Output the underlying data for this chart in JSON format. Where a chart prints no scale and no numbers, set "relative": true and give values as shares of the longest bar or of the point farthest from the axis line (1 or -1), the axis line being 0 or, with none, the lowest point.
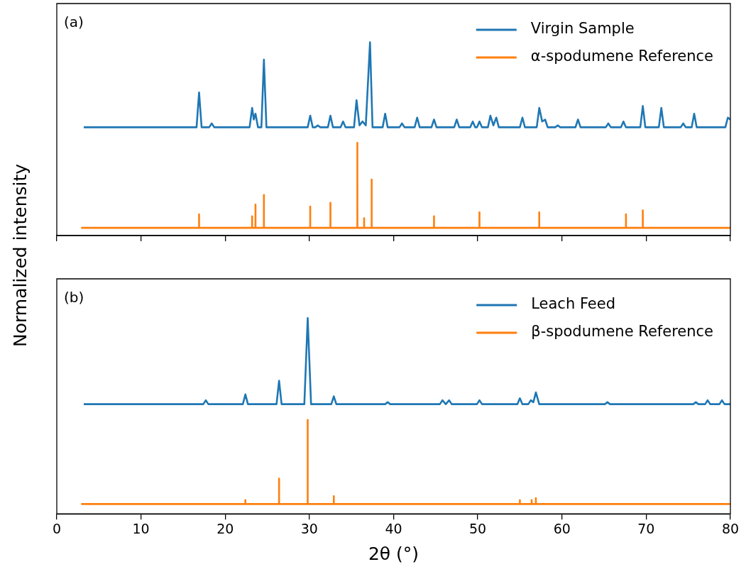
{
  "chart_data": [
    {
      "type": "line",
      "relative": true,
      "ylabel": "Normalized intensity",
      "xlim": [
        0,
        80
      ],
      "xticks": [
        0,
        10,
        20,
        30,
        40,
        50,
        60,
        70,
        80
      ],
      "tick_labels": false,
      "legend": "top right",
      "annotations": [
        "(a)"
      ],
      "series": [
        {
          "name": "Virgin Sample",
          "color": "#1f77b4",
          "x": [
            3.2,
            16.6,
            16.9,
            17.2,
            18.1,
            18.4,
            18.7,
            22.9,
            23.2,
            23.4,
            23.6,
            23.9,
            24.3,
            24.6,
            24.9,
            29.8,
            30.1,
            30.4,
            30.7,
            31.0,
            31.3,
            32.2,
            32.5,
            32.8,
            33.7,
            34.0,
            34.3,
            35.3,
            35.6,
            35.95,
            36.3,
            36.7,
            37.2,
            37.5,
            38.7,
            39.0,
            39.3,
            40.7,
            41.0,
            41.3,
            42.5,
            42.8,
            43.1,
            44.5,
            44.8,
            45.1,
            47.2,
            47.5,
            47.8,
            49.1,
            49.4,
            49.7,
            49.9,
            50.2,
            50.5,
            51.2,
            51.5,
            51.85,
            52.2,
            52.5,
            55.0,
            55.3,
            55.6,
            57.0,
            57.3,
            57.65,
            58.0,
            58.3,
            59.2,
            59.5,
            59.8,
            61.6,
            61.9,
            62.2,
            65.2,
            65.5,
            65.8,
            67.0,
            67.3,
            67.6,
            69.3,
            69.6,
            69.9,
            71.5,
            71.8,
            72.1,
            74.1,
            74.4,
            74.7,
            75.4,
            75.7,
            76.0,
            79.4,
            79.7,
            80
          ],
          "values": [
            0.56,
            0.56,
            0.74,
            0.56,
            0.56,
            0.58,
            0.56,
            0.56,
            0.66,
            0.6,
            0.63,
            0.56,
            0.56,
            0.91,
            0.56,
            0.56,
            0.62,
            0.56,
            0.56,
            0.57,
            0.56,
            0.56,
            0.62,
            0.56,
            0.56,
            0.59,
            0.56,
            0.56,
            0.7,
            0.57,
            0.59,
            0.57,
            1,
            0.56,
            0.56,
            0.63,
            0.56,
            0.56,
            0.58,
            0.56,
            0.56,
            0.61,
            0.56,
            0.56,
            0.6,
            0.56,
            0.56,
            0.6,
            0.56,
            0.56,
            0.59,
            0.56,
            0.56,
            0.59,
            0.56,
            0.56,
            0.62,
            0.57,
            0.61,
            0.56,
            0.56,
            0.61,
            0.56,
            0.56,
            0.66,
            0.59,
            0.6,
            0.56,
            0.56,
            0.57,
            0.56,
            0.56,
            0.6,
            0.56,
            0.56,
            0.58,
            0.56,
            0.56,
            0.59,
            0.56,
            0.56,
            0.67,
            0.56,
            0.56,
            0.66,
            0.56,
            0.56,
            0.58,
            0.56,
            0.56,
            0.63,
            0.56,
            0.56,
            0.61,
            0.6
          ]
        },
        {
          "name": "α-spodumene Reference",
          "color": "#ff7f0e",
          "x": [
            2.9,
            16.9,
            16.9,
            16.9,
            23.2,
            23.2,
            23.2,
            23.6,
            23.6,
            23.6,
            24.6,
            24.6,
            24.6,
            30.1,
            30.1,
            30.1,
            32.5,
            32.5,
            32.5,
            35.7,
            35.7,
            35.7,
            36.5,
            36.5,
            36.5,
            37.4,
            37.4,
            37.4,
            44.8,
            44.8,
            44.8,
            50.2,
            50.2,
            50.2,
            57.3,
            57.3,
            57.3,
            67.6,
            67.6,
            67.6,
            69.6,
            69.6,
            69.6,
            80
          ],
          "values": [
            0.04,
            0.04,
            0.11,
            0.04,
            0.04,
            0.1,
            0.04,
            0.04,
            0.16,
            0.04,
            0.04,
            0.21,
            0.04,
            0.04,
            0.15,
            0.04,
            0.04,
            0.17,
            0.04,
            0.04,
            0.48,
            0.04,
            0.04,
            0.09,
            0.04,
            0.04,
            0.29,
            0.04,
            0.04,
            0.1,
            0.04,
            0.04,
            0.12,
            0.04,
            0.04,
            0.12,
            0.04,
            0.04,
            0.11,
            0.04,
            0.04,
            0.13,
            0.04,
            0.04
          ]
        }
      ]
    },
    {
      "type": "line",
      "relative": true,
      "xlabel": "2θ (°)",
      "xlim": [
        0,
        80
      ],
      "xticks": [
        0,
        10,
        20,
        30,
        40,
        50,
        60,
        70,
        80
      ],
      "tick_labels": "x",
      "legend": "top right",
      "annotations": [
        "(b)"
      ],
      "series": [
        {
          "name": "Leach Feed",
          "color": "#1f77b4",
          "x": [
            3.2,
            17.4,
            17.7,
            18.0,
            22.1,
            22.4,
            22.7,
            26.1,
            26.4,
            26.7,
            29.4,
            29.8,
            30.2,
            32.6,
            32.9,
            33.2,
            39.0,
            39.3,
            39.6,
            45.5,
            45.8,
            46.2,
            46.6,
            46.9,
            49.9,
            50.2,
            50.5,
            54.7,
            55.0,
            55.3,
            56.0,
            56.3,
            56.6,
            56.9,
            57.3,
            65.1,
            65.4,
            65.7,
            75.6,
            75.9,
            76.2,
            77.0,
            77.3,
            77.6,
            78.7,
            79.0,
            79.3,
            80
          ],
          "values": [
            0.56,
            0.56,
            0.58,
            0.56,
            0.56,
            0.61,
            0.56,
            0.56,
            0.68,
            0.56,
            0.56,
            1,
            0.56,
            0.56,
            0.6,
            0.56,
            0.56,
            0.57,
            0.56,
            0.56,
            0.58,
            0.56,
            0.58,
            0.56,
            0.56,
            0.58,
            0.56,
            0.56,
            0.59,
            0.56,
            0.56,
            0.58,
            0.57,
            0.62,
            0.56,
            0.56,
            0.57,
            0.56,
            0.56,
            0.57,
            0.56,
            0.56,
            0.58,
            0.56,
            0.56,
            0.58,
            0.56,
            0.56
          ]
        },
        {
          "name": "β-spodumene Reference",
          "color": "#ff7f0e",
          "x": [
            2.9,
            22.4,
            22.4,
            22.4,
            26.4,
            26.4,
            26.4,
            29.8,
            29.8,
            29.8,
            32.9,
            32.9,
            32.9,
            55.0,
            55.0,
            55.0,
            56.4,
            56.4,
            56.4,
            56.9,
            56.9,
            56.9,
            80
          ],
          "values": [
            0.05,
            0.05,
            0.07,
            0.05,
            0.05,
            0.18,
            0.05,
            0.05,
            0.48,
            0.05,
            0.05,
            0.09,
            0.05,
            0.05,
            0.07,
            0.05,
            0.05,
            0.07,
            0.05,
            0.05,
            0.08,
            0.05,
            0.05
          ]
        }
      ]
    }
  ]
}
